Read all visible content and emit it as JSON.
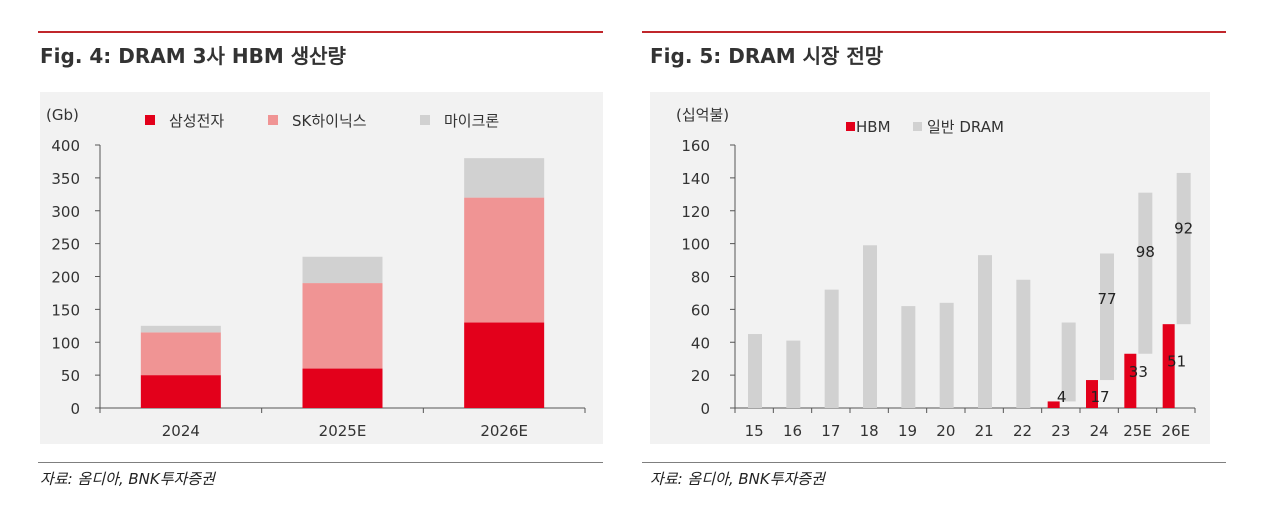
{
  "left": {
    "title": "Fig. 4: DRAM 3사 HBM 생산량",
    "source": "자료: 옴디아, BNK투자증권"
  },
  "right": {
    "title": "Fig. 5: DRAM 시장 전망",
    "source": "자료: 옴디아, BNK투자증권"
  },
  "colors": {
    "red": "#e3001b",
    "pink": "#f09494",
    "gray": "#d1d1d1",
    "rule": "#c0262b"
  },
  "chart_data": [
    {
      "type": "bar",
      "stacked": true,
      "unit_label": "(Gb)",
      "categories": [
        "2024",
        "2025E",
        "2026E"
      ],
      "series": [
        {
          "name": "삼성전자",
          "color": "#e3001b",
          "values": [
            50,
            60,
            130
          ]
        },
        {
          "name": "SK하이닉스",
          "color": "#f09494",
          "values": [
            65,
            130,
            190
          ]
        },
        {
          "name": "마이크론",
          "color": "#d1d1d1",
          "values": [
            10,
            40,
            60
          ]
        }
      ],
      "ylim": [
        0,
        400
      ],
      "yticks": [
        0,
        50,
        100,
        150,
        200,
        250,
        300,
        350,
        400
      ],
      "legend_position": "top",
      "grid": false
    },
    {
      "type": "bar",
      "stacked": false,
      "unit_label": "(십억불)",
      "categories": [
        "15",
        "16",
        "17",
        "18",
        "19",
        "20",
        "21",
        "22",
        "23",
        "24",
        "25E",
        "26E"
      ],
      "series": [
        {
          "name": "HBM",
          "color": "#e3001b",
          "values": [
            null,
            null,
            null,
            null,
            null,
            null,
            null,
            null,
            4,
            17,
            33,
            51
          ],
          "labels": [
            "",
            "",
            "",
            "",
            "",
            "",
            "",
            "",
            "4",
            "17",
            "33",
            "51"
          ]
        },
        {
          "name": "일반 DRAM",
          "color": "#d1d1d1",
          "values": [
            45,
            41,
            72,
            99,
            62,
            64,
            93,
            78,
            48,
            77,
            98,
            92
          ],
          "labels": [
            "",
            "",
            "",
            "",
            "",
            "",
            "",
            "",
            "",
            "77",
            "98",
            "92"
          ]
        }
      ],
      "ylim": [
        0,
        160
      ],
      "yticks": [
        0,
        20,
        40,
        60,
        80,
        100,
        120,
        140,
        160
      ],
      "legend_position": "top",
      "grid": false
    }
  ]
}
